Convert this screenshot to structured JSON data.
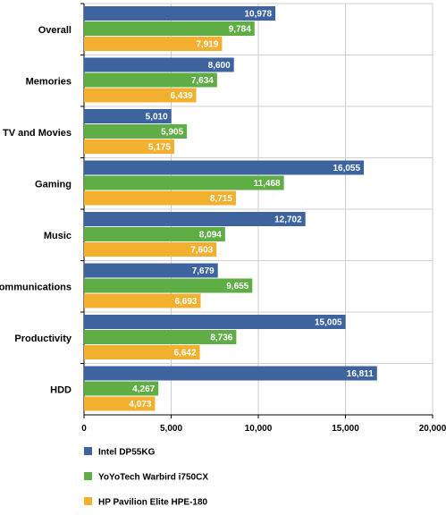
{
  "chart_data": {
    "type": "bar",
    "orientation": "horizontal",
    "categories": [
      "Overall",
      "Memories",
      "TV and Movies",
      "Gaming",
      "Music",
      "Communications",
      "Productivity",
      "HDD"
    ],
    "series": [
      {
        "name": "Intel DP55KG",
        "color": "#3e64a0",
        "values": [
          10978,
          8600,
          5010,
          16055,
          12702,
          7679,
          15005,
          16811
        ],
        "labels": [
          "10,978",
          "8,600",
          "5,010",
          "16,055",
          "12,702",
          "7,679",
          "15,005",
          "16,811"
        ]
      },
      {
        "name": "YoYoTech Warbird i750CX",
        "color": "#5fad45",
        "values": [
          9784,
          7634,
          5905,
          11468,
          8094,
          9655,
          8736,
          4267
        ],
        "labels": [
          "9,784",
          "7,634",
          "5,905",
          "11,468",
          "8,094",
          "9,655",
          "8,736",
          "4,267"
        ]
      },
      {
        "name": "HP Pavilion Elite HPE-180",
        "color": "#f2b02e",
        "values": [
          7919,
          6439,
          5175,
          8715,
          7603,
          6693,
          6642,
          4073
        ],
        "labels": [
          "7,919",
          "6,439",
          "5,175",
          "8,715",
          "7,603",
          "6,693",
          "6,642",
          "4,073"
        ]
      }
    ],
    "xlim": [
      0,
      20000
    ],
    "ticks": [
      0,
      5000,
      10000,
      15000,
      20000
    ],
    "tick_labels": [
      "0",
      "5,000",
      "10,000",
      "15,000",
      "20,000"
    ],
    "grid": true,
    "legend_position": "bottom-left",
    "title": "",
    "xlabel": "",
    "ylabel": ""
  }
}
